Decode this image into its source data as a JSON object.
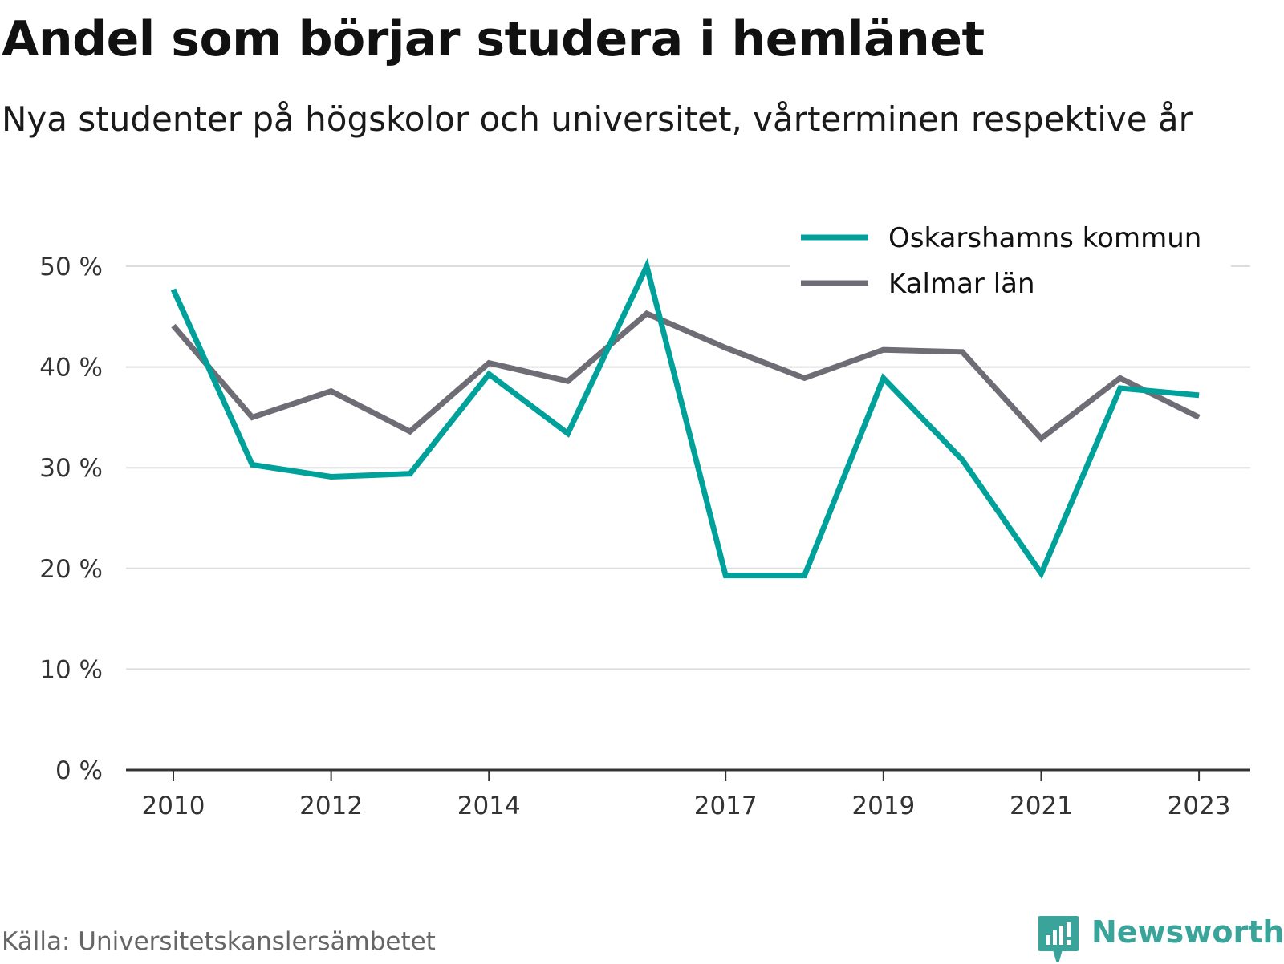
{
  "header": {
    "title": "Andel som börjar studera i hemlänet",
    "subtitle": "Nya studenter på högskolor och universitet, vårterminen respektive år"
  },
  "footer": {
    "source": "Källa: Universitetskanslersämbetet",
    "brand": "Newsworthy"
  },
  "colors": {
    "oskarshamn": "#00a19a",
    "kalmar": "#6e6d75",
    "grid": "#dddddd",
    "axis": "#333333",
    "brand": "#3aa39a"
  },
  "icons": {
    "brand_logo": "newsworthy-logo-icon"
  },
  "chart_data": {
    "type": "line",
    "x": [
      2010,
      2011,
      2012,
      2013,
      2014,
      2015,
      2016,
      2017,
      2018,
      2019,
      2020,
      2021,
      2022,
      2023
    ],
    "x_tick_labels": [
      "2010",
      "2012",
      "2014",
      "2017",
      "2019",
      "2021",
      "2023"
    ],
    "x_tick_values": [
      2010,
      2012,
      2014,
      2017,
      2019,
      2021,
      2023
    ],
    "y_ticks": [
      0,
      10,
      20,
      30,
      40,
      50
    ],
    "y_tick_labels": [
      "0 %",
      "10 %",
      "20 %",
      "30 %",
      "40 %",
      "50 %"
    ],
    "ylim": [
      0,
      50
    ],
    "xlim": [
      2009.4,
      2023.65
    ],
    "grid": "horizontal",
    "legend_position": "top-right",
    "series": [
      {
        "name": "Oskarshamns kommun",
        "values": [
          47.7,
          30.3,
          29.1,
          29.4,
          39.3,
          33.4,
          50.0,
          19.3,
          19.3,
          38.9,
          30.8,
          19.5,
          37.9,
          37.2
        ]
      },
      {
        "name": "Kalmar län",
        "values": [
          44.1,
          35.0,
          37.6,
          33.6,
          40.4,
          38.6,
          45.3,
          41.9,
          38.9,
          41.7,
          41.5,
          32.9,
          38.9,
          35.0
        ]
      }
    ]
  }
}
